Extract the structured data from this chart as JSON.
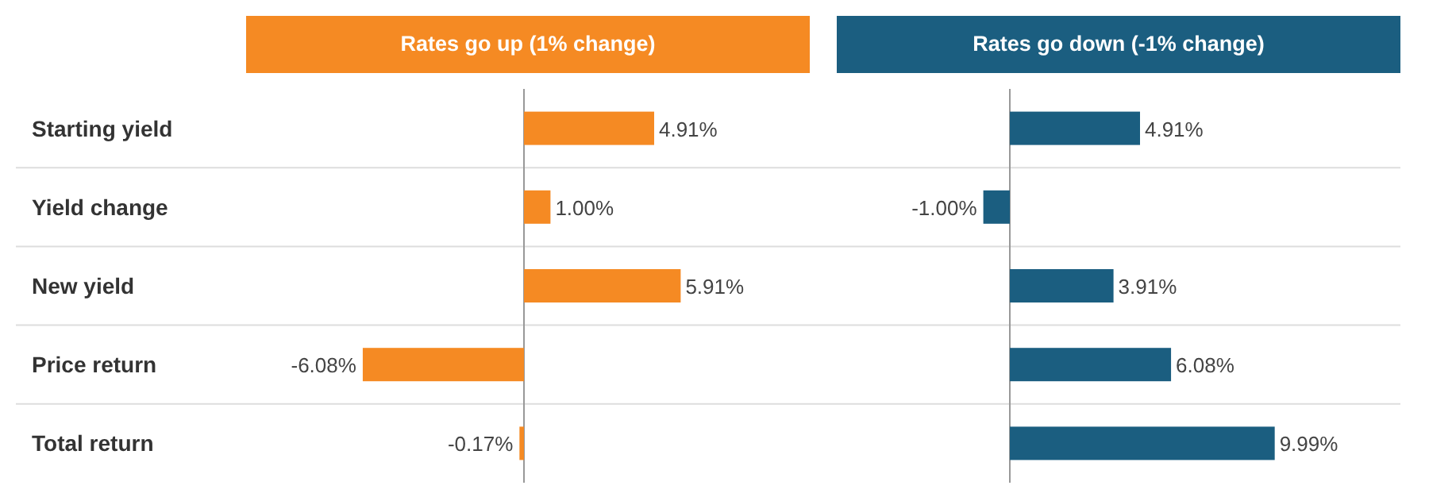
{
  "chart_data": [
    {
      "type": "bar",
      "orientation": "horizontal",
      "title": "Rates go up (1% change)",
      "categories": [
        "Starting yield",
        "Yield change",
        "New yield",
        "Price return",
        "Total return"
      ],
      "series": [
        {
          "color": "#f58a23",
          "values": [
            4.91,
            1.0,
            5.91,
            -6.08,
            -0.17
          ],
          "value_labels": [
            "4.91%",
            "1.00%",
            "5.91%",
            "-6.08%",
            "-0.17%"
          ]
        }
      ],
      "grid": "y"
    },
    {
      "type": "bar",
      "orientation": "horizontal",
      "title": "Rates go down (-1% change)",
      "categories": [
        null,
        null,
        null,
        null,
        null
      ],
      "series": [
        {
          "color": "#1b5e80",
          "values": [
            4.91,
            -1.0,
            3.91,
            6.08,
            9.99
          ],
          "value_labels": [
            "4.91%",
            "-1.00%",
            "3.91%",
            "6.08%",
            "9.99%"
          ]
        }
      ],
      "grid": "y"
    }
  ]
}
